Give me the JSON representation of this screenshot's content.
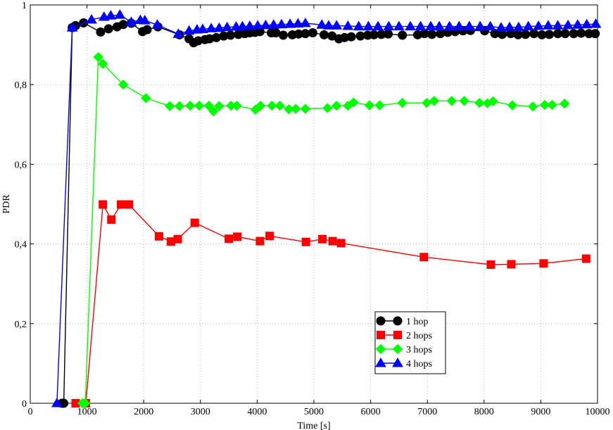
{
  "chart_data": {
    "type": "line",
    "xlabel": "Time [s]",
    "ylabel": "PDR",
    "xlim": [
      0,
      10000
    ],
    "ylim": [
      0,
      1
    ],
    "x_ticks": [
      0,
      1000,
      2000,
      3000,
      4000,
      5000,
      6000,
      7000,
      8000,
      9000,
      10000
    ],
    "x_tick_labels": [
      "0",
      "1000",
      "2000",
      "3000",
      "4000",
      "5000",
      "6000",
      "7000",
      "8000",
      "9000",
      "10000"
    ],
    "y_ticks": [
      0,
      0.2,
      0.4,
      0.6,
      0.8,
      1
    ],
    "y_tick_labels": [
      "0",
      "0,2",
      "0,4",
      "0,6",
      "0,8",
      "1"
    ],
    "grid": true,
    "legend_position": "bottom-right",
    "series": [
      {
        "name": "1 hop",
        "color": "#000000",
        "marker": "circle",
        "x": [
          560,
          590,
          740,
          800,
          940,
          1240,
          1380,
          1530,
          1640,
          1780,
          1980,
          2060,
          2250,
          2630,
          2800,
          2880,
          2960,
          3080,
          3160,
          3280,
          3410,
          3530,
          3670,
          3780,
          3870,
          3960,
          4050,
          4250,
          4330,
          4460,
          4620,
          4730,
          4850,
          4980,
          5180,
          5320,
          5440,
          5540,
          5660,
          5820,
          5950,
          6060,
          6190,
          6310,
          6560,
          6830,
          6950,
          7080,
          7230,
          7360,
          7490,
          7630,
          7760,
          8010,
          8190,
          8320,
          8470,
          8600,
          8730,
          8880,
          9020,
          9150,
          9300,
          9430,
          9580,
          9710,
          9850,
          9960
        ],
        "y": [
          0,
          0,
          0.943,
          0.948,
          0.955,
          0.932,
          0.94,
          0.945,
          0.951,
          0.954,
          0.933,
          0.938,
          0.945,
          0.925,
          0.915,
          0.905,
          0.91,
          0.913,
          0.915,
          0.918,
          0.922,
          0.924,
          0.926,
          0.928,
          0.93,
          0.931,
          0.933,
          0.93,
          0.93,
          0.924,
          0.925,
          0.927,
          0.928,
          0.93,
          0.925,
          0.922,
          0.915,
          0.918,
          0.92,
          0.922,
          0.924,
          0.925,
          0.926,
          0.927,
          0.924,
          0.925,
          0.928,
          0.926,
          0.928,
          0.931,
          0.933,
          0.935,
          0.936,
          0.935,
          0.928,
          0.926,
          0.928,
          0.925,
          0.926,
          0.928,
          0.925,
          0.926,
          0.928,
          0.928,
          0.928,
          0.929,
          0.928,
          0.928
        ]
      },
      {
        "name": "2 hops",
        "color": "#ff0000",
        "marker": "square",
        "x": [
          800,
          980,
          1280,
          1430,
          1600,
          1740,
          2270,
          2480,
          2600,
          2900,
          3500,
          3650,
          4050,
          4220,
          4860,
          5150,
          5330,
          5480,
          6940,
          8120,
          8480,
          9050,
          9800
        ],
        "y": [
          0,
          0,
          0.499,
          0.461,
          0.499,
          0.499,
          0.419,
          0.406,
          0.412,
          0.453,
          0.413,
          0.418,
          0.407,
          0.42,
          0.405,
          0.412,
          0.407,
          0.402,
          0.367,
          0.348,
          0.349,
          0.351,
          0.363
        ]
      },
      {
        "name": "3 hops",
        "color": "#00ff00",
        "marker": "diamond",
        "x": [
          920,
          970,
          1200,
          1280,
          1640,
          2040,
          2460,
          2630,
          2820,
          2980,
          3150,
          3230,
          3330,
          3540,
          3640,
          3970,
          4060,
          4260,
          4400,
          4560,
          4680,
          4850,
          5240,
          5400,
          5600,
          5700,
          5980,
          6160,
          6560,
          6990,
          7120,
          7430,
          7650,
          7920,
          8060,
          8160,
          8500,
          8860,
          9070,
          9200,
          9420
        ],
        "y": [
          0,
          0,
          0.869,
          0.852,
          0.8,
          0.766,
          0.746,
          0.746,
          0.747,
          0.747,
          0.747,
          0.733,
          0.746,
          0.747,
          0.747,
          0.737,
          0.747,
          0.747,
          0.747,
          0.738,
          0.739,
          0.739,
          0.741,
          0.747,
          0.747,
          0.755,
          0.748,
          0.748,
          0.754,
          0.754,
          0.759,
          0.759,
          0.759,
          0.754,
          0.753,
          0.758,
          0.748,
          0.745,
          0.749,
          0.749,
          0.752
        ]
      },
      {
        "name": "4 hops",
        "color": "#0000ff",
        "marker": "triangle",
        "x": [
          470,
          740,
          1080,
          1300,
          1420,
          1580,
          1780,
          1940,
          2020,
          2240,
          2610,
          2800,
          2940,
          3040,
          3190,
          3330,
          3470,
          3630,
          3740,
          3870,
          4010,
          4150,
          4290,
          4430,
          4580,
          4720,
          4850,
          5140,
          5260,
          5400,
          5600,
          5790,
          5960,
          6130,
          6320,
          6500,
          6700,
          6880,
          7060,
          7210,
          7390,
          7560,
          7740,
          7930,
          8110,
          8300,
          8450,
          8610,
          8780,
          8960,
          9130,
          9300,
          9480,
          9650,
          9810,
          9970
        ],
        "y": [
          0,
          0.943,
          0.963,
          0.97,
          0.973,
          0.975,
          0.957,
          0.962,
          0.961,
          0.95,
          0.927,
          0.935,
          0.938,
          0.939,
          0.941,
          0.942,
          0.944,
          0.945,
          0.946,
          0.947,
          0.948,
          0.949,
          0.95,
          0.951,
          0.952,
          0.953,
          0.954,
          0.95,
          0.948,
          0.948,
          0.947,
          0.946,
          0.946,
          0.946,
          0.946,
          0.946,
          0.946,
          0.946,
          0.946,
          0.946,
          0.946,
          0.946,
          0.946,
          0.946,
          0.946,
          0.943,
          0.944,
          0.944,
          0.946,
          0.947,
          0.948,
          0.948,
          0.949,
          0.95,
          0.951,
          0.952
        ]
      }
    ]
  }
}
